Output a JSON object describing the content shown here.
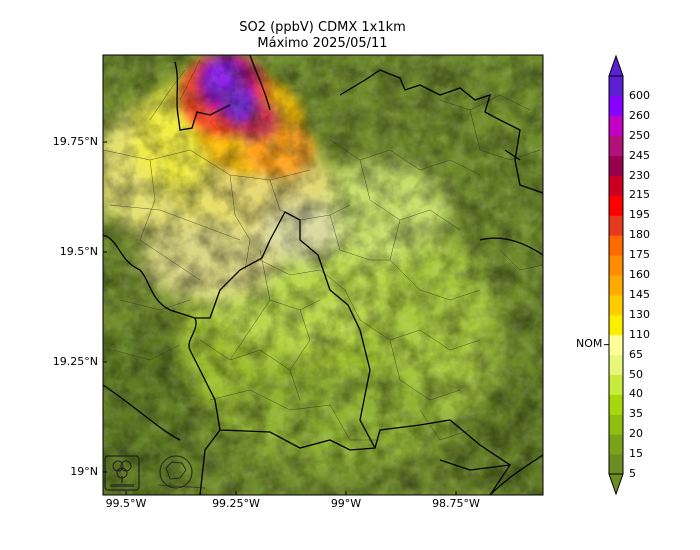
{
  "title": {
    "line1": "SO2 (ppbV) CDMX 1x1km",
    "line2": "Máximo 2025/05/11"
  },
  "axes": {
    "lat_ticks": [
      "19.75°N",
      "19.5°N",
      "19.25°N",
      "19°N"
    ],
    "lon_ticks": [
      "99.5°W",
      "99.25°W",
      "99°W",
      "98.75°W"
    ]
  },
  "colorbar": {
    "levels": [
      "5",
      "15",
      "20",
      "35",
      "40",
      "50",
      "65",
      "110",
      "130",
      "145",
      "160",
      "175",
      "180",
      "195",
      "215",
      "230",
      "245",
      "250",
      "260",
      "600"
    ],
    "colors": [
      "#6b8e23",
      "#7ba318",
      "#8cbf10",
      "#a8d80c",
      "#c7ec3c",
      "#e6f77a",
      "#ffff99",
      "#ffee00",
      "#ffcc00",
      "#ffaa00",
      "#ff8c00",
      "#ff6a00",
      "#e53a1e",
      "#ff0000",
      "#cc0022",
      "#99004d",
      "#b3117a",
      "#c400c4",
      "#8800ff",
      "#5c1fd4"
    ],
    "nom_label": "NOM"
  },
  "icons": {
    "logo_left": "sedema-tree-logo-icon",
    "logo_right": "cdmx-map-logo-icon"
  }
}
